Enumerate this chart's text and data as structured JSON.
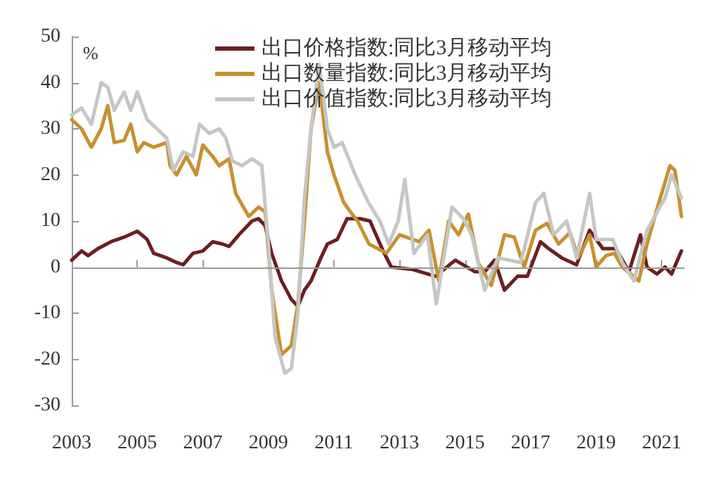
{
  "chart_data": {
    "type": "line",
    "ylabel": "%",
    "xlim": [
      2003,
      2021.7
    ],
    "ylim": [
      -30,
      50
    ],
    "xticks": [
      2003,
      2005,
      2007,
      2009,
      2011,
      2013,
      2015,
      2017,
      2019,
      2021
    ],
    "yticks": [
      -30,
      -20,
      -10,
      0,
      10,
      20,
      30,
      40,
      50
    ],
    "grid": false,
    "ref_lines": [
      {
        "axis": "y",
        "value": 0,
        "color": "#999999"
      }
    ],
    "legend": "top",
    "marker": "none",
    "line_style": "solid",
    "series": [
      {
        "name": "出口价格指数:同比3月移动平均",
        "color": "#6b1f22",
        "x": [
          2003.0,
          2003.3,
          2003.5,
          2003.8,
          2004.2,
          2004.6,
          2005.0,
          2005.3,
          2005.5,
          2005.9,
          2006.2,
          2006.4,
          2006.7,
          2007.0,
          2007.3,
          2007.6,
          2007.8,
          2008.1,
          2008.5,
          2008.7,
          2008.9,
          2009.1,
          2009.4,
          2009.7,
          2009.9,
          2010.1,
          2010.3,
          2010.6,
          2010.8,
          2011.1,
          2011.3,
          2011.4,
          2011.8,
          2012.1,
          2012.48,
          2012.75,
          2013.4,
          2014.1,
          2014.7,
          2015.3,
          2015.6,
          2015.9,
          2016.2,
          2016.6,
          2016.9,
          2017.3,
          2017.55,
          2017.95,
          2018.4,
          2018.8,
          2019.2,
          2019.6,
          2020.0,
          2020.35,
          2020.55,
          2020.85,
          2021.1,
          2021.3,
          2021.6
        ],
        "values": [
          1.5,
          3.5,
          2.5,
          4,
          5.5,
          6.5,
          7.8,
          6,
          3,
          2,
          1,
          0.5,
          3,
          3.5,
          5.5,
          5,
          4.5,
          7,
          10,
          10.5,
          9,
          3,
          -3,
          -7,
          -8.5,
          -5,
          -3,
          2,
          5,
          6,
          9,
          10.5,
          10.5,
          10,
          3.8,
          0,
          -0.5,
          -2,
          1.5,
          -1,
          -1,
          1.5,
          -5,
          -2,
          -2,
          5.5,
          4,
          2,
          0.5,
          8,
          4,
          4,
          -1,
          7,
          0,
          -1.5,
          0,
          -1.5,
          3.5
        ]
      },
      {
        "name": "出口数量指数:同比3月移动平均",
        "color": "#c8902e",
        "x": [
          2003.0,
          2003.3,
          2003.6,
          2003.9,
          2004.1,
          2004.3,
          2004.6,
          2004.8,
          2005.0,
          2005.2,
          2005.5,
          2005.9,
          2006.0,
          2006.2,
          2006.5,
          2006.8,
          2007.0,
          2007.3,
          2007.5,
          2007.8,
          2008.0,
          2008.4,
          2008.7,
          2008.9,
          2009.1,
          2009.4,
          2009.7,
          2009.9,
          2010.1,
          2010.3,
          2010.55,
          2010.8,
          2011.0,
          2011.3,
          2011.5,
          2011.72,
          2012.07,
          2012.34,
          2012.6,
          2013.0,
          2013.6,
          2013.9,
          2014.2,
          2014.5,
          2014.8,
          2015.1,
          2015.4,
          2015.8,
          2016.2,
          2016.5,
          2016.8,
          2017.15,
          2017.5,
          2017.85,
          2018.2,
          2018.45,
          2018.8,
          2019.0,
          2019.3,
          2019.55,
          2019.8,
          2020.3,
          2020.55,
          2020.85,
          2021.25,
          2021.4,
          2021.6
        ],
        "values": [
          32,
          30,
          26,
          30,
          35,
          27,
          27.5,
          31,
          25,
          27,
          26,
          27,
          22,
          20,
          24,
          20,
          26.5,
          24,
          22,
          23.5,
          16,
          11,
          13,
          12,
          -5,
          -19,
          -17,
          -8,
          10,
          30,
          40,
          25,
          20,
          14,
          12,
          10,
          5,
          4,
          3,
          7,
          5.5,
          8,
          -3,
          10,
          7,
          11.5,
          1,
          -4,
          7,
          6.5,
          0,
          8,
          9.5,
          5,
          7.5,
          2,
          7,
          0,
          2.5,
          3,
          0,
          -3,
          5,
          12.5,
          22,
          21,
          11
        ]
      },
      {
        "name": "出口价值指数:同比3月移动平均",
        "color": "#c6c6c6",
        "x": [
          2003.0,
          2003.3,
          2003.6,
          2003.9,
          2004.1,
          2004.3,
          2004.6,
          2004.8,
          2005.0,
          2005.3,
          2005.6,
          2005.9,
          2006.1,
          2006.4,
          2006.7,
          2006.9,
          2007.2,
          2007.5,
          2007.7,
          2007.9,
          2008.2,
          2008.5,
          2008.8,
          2009.0,
          2009.2,
          2009.5,
          2009.7,
          2009.9,
          2010.1,
          2010.3,
          2010.55,
          2010.8,
          2011.0,
          2011.25,
          2011.65,
          2012.05,
          2012.4,
          2012.67,
          2012.96,
          2013.16,
          2013.44,
          2013.85,
          2014.12,
          2014.6,
          2014.95,
          2015.2,
          2015.6,
          2016.0,
          2016.7,
          2017.15,
          2017.4,
          2017.7,
          2018.1,
          2018.4,
          2018.8,
          2019.0,
          2019.5,
          2019.8,
          2020.15,
          2020.55,
          2021.1,
          2021.3,
          2021.6
        ],
        "values": [
          33,
          34.5,
          31,
          40,
          39,
          34,
          38,
          34,
          38,
          32,
          30,
          28,
          21,
          25,
          24,
          31,
          29,
          30,
          28,
          23,
          22,
          23.5,
          22,
          5,
          -15,
          -23,
          -22,
          -10,
          15,
          30,
          44,
          30,
          26,
          27,
          20,
          14,
          10,
          5,
          10,
          19,
          3,
          7,
          -8,
          13,
          10.5,
          7,
          -5,
          2,
          1,
          14,
          16,
          7,
          10,
          2,
          16,
          6,
          6,
          1,
          -3,
          8,
          15,
          20,
          15
        ]
      }
    ]
  }
}
